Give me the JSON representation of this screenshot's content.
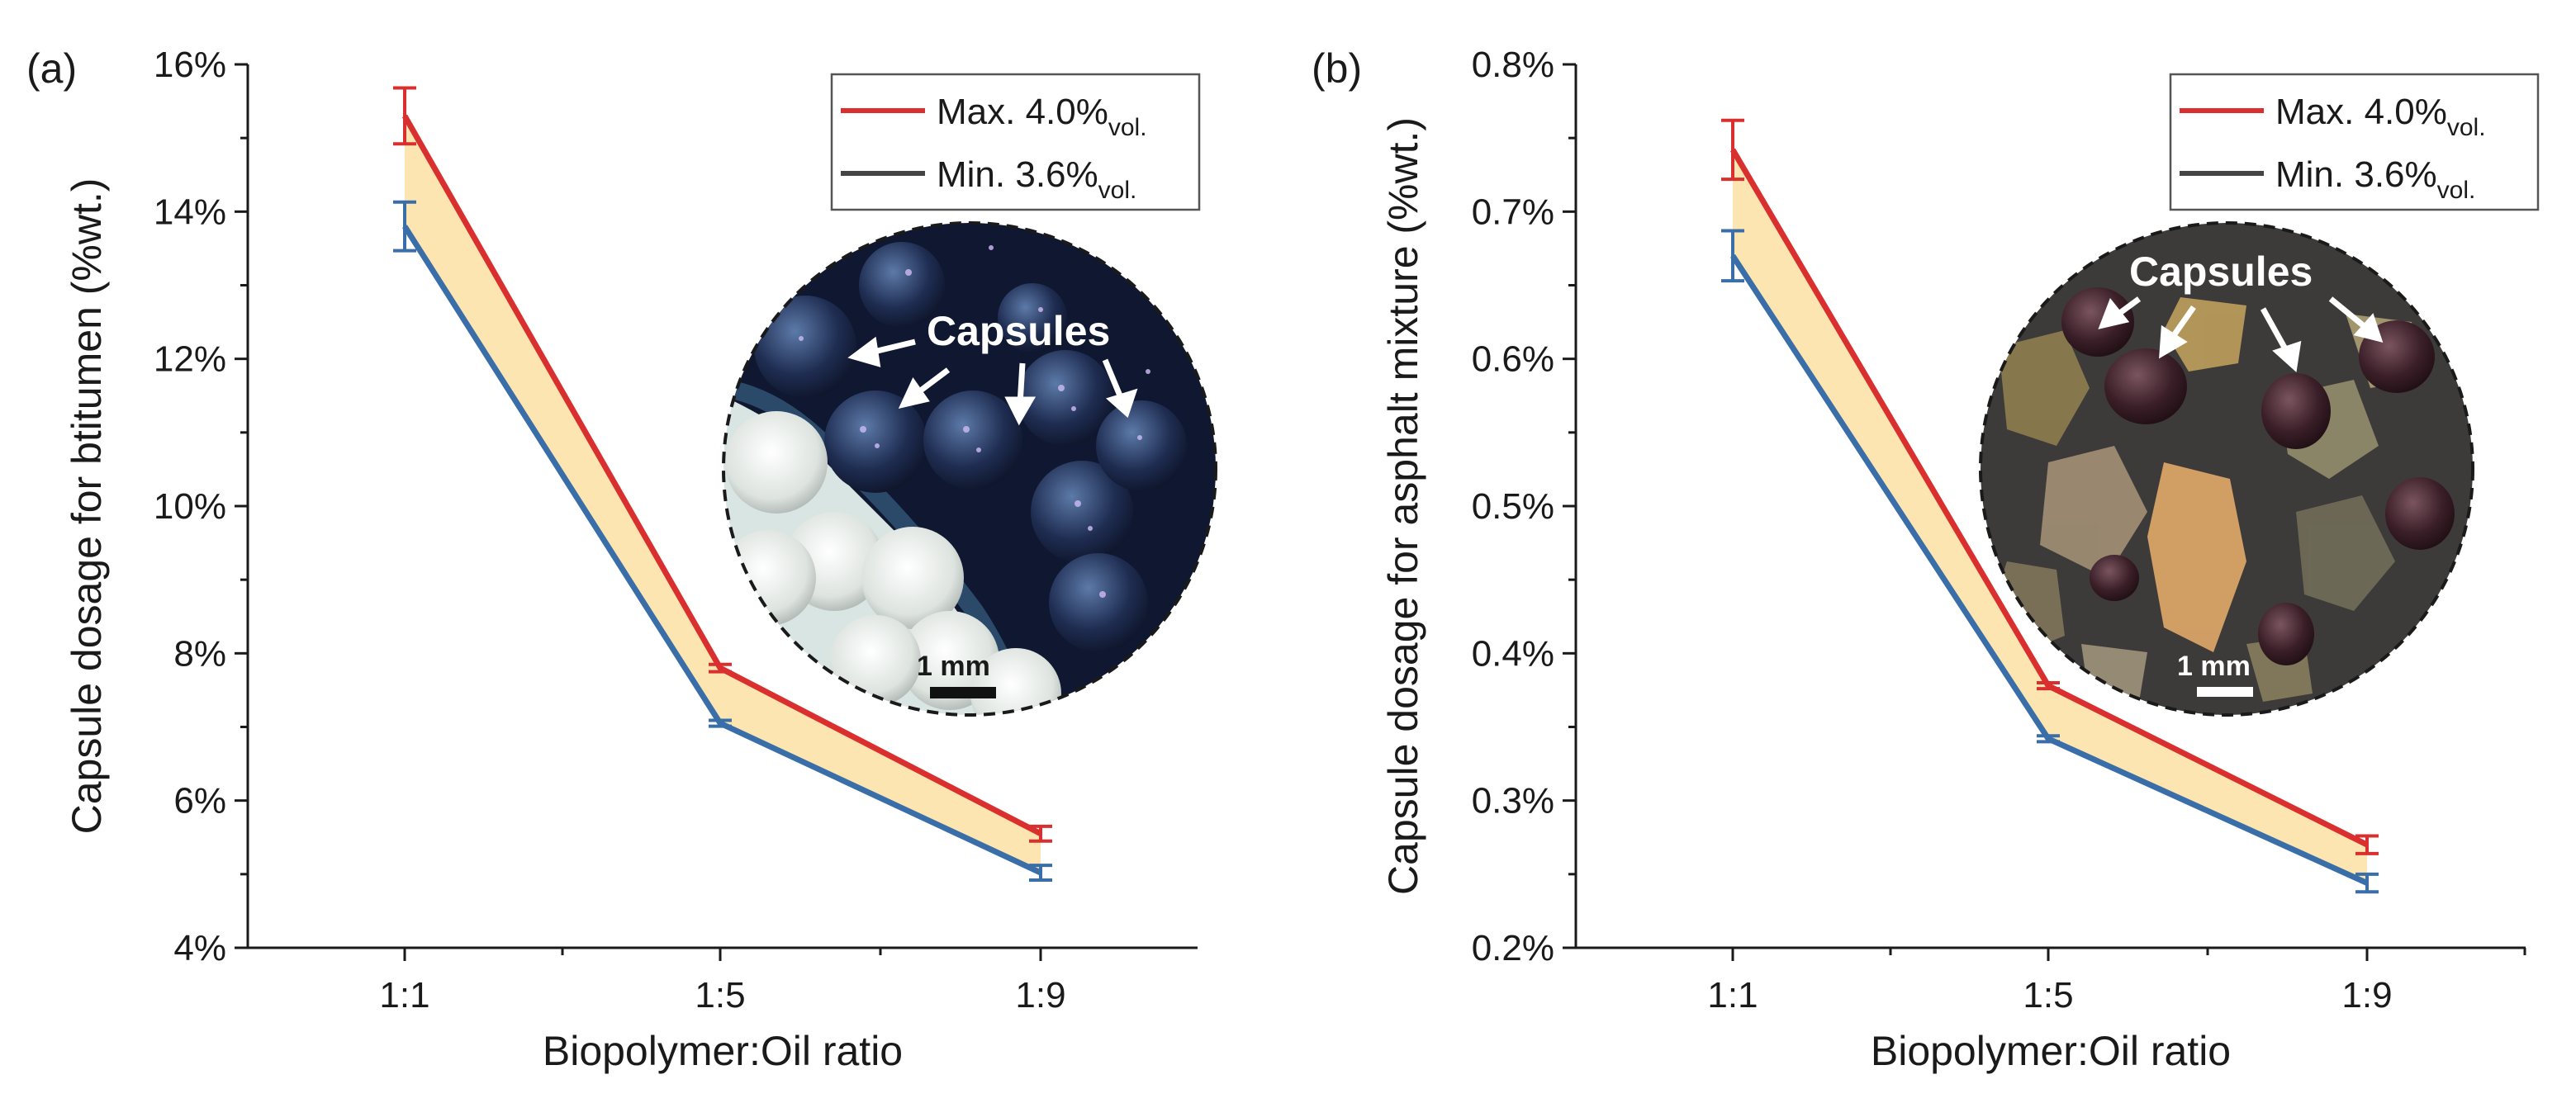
{
  "colors": {
    "max_series": "#d9302f",
    "min_series": "#3a6ea8",
    "band": "#fce5b0",
    "legend_min_swatch": "#444444"
  },
  "chart_data": [
    {
      "panel": "(a)",
      "type": "line",
      "categories": [
        "1:1",
        "1:5",
        "1:9"
      ],
      "xlabel": "Biopolymer:Oil ratio",
      "ylabel": "Capsule dosage for btitumen (%wt.)",
      "ylim": [
        4,
        16
      ],
      "yticks": [
        "4%",
        "6%",
        "8%",
        "10%",
        "12%",
        "14%",
        "16%"
      ],
      "ytick_values": [
        4,
        6,
        8,
        10,
        12,
        14,
        16
      ],
      "fill_between_series": true,
      "legend_position": "top-right",
      "series": [
        {
          "name": "Max. 4.0%",
          "name_sub": "vol.",
          "color": "#d9302f",
          "values": [
            15.3,
            7.8,
            5.55
          ],
          "errors": [
            0.38,
            0.05,
            0.1
          ]
        },
        {
          "name": "Min. 3.6%",
          "name_sub": "vol.",
          "color": "#3a6ea8",
          "values": [
            13.8,
            7.05,
            5.02
          ],
          "errors": [
            0.33,
            0.04,
            0.1
          ]
        }
      ],
      "inset": {
        "annotation": "Capsules",
        "scale_bar": "1 mm",
        "style": "blue-capsules"
      }
    },
    {
      "panel": "(b)",
      "type": "line",
      "categories": [
        "1:1",
        "1:5",
        "1:9"
      ],
      "xlabel": "Biopolymer:Oil ratio",
      "ylabel": "Capsule dosage for asphalt mixture (%wt.)",
      "ylim": [
        0.2,
        0.8
      ],
      "yticks": [
        "0.2%",
        "0.3%",
        "0.4%",
        "0.5%",
        "0.6%",
        "0.7%",
        "0.8%"
      ],
      "ytick_values": [
        0.2,
        0.3,
        0.4,
        0.5,
        0.6,
        0.7,
        0.8
      ],
      "fill_between_series": true,
      "legend_position": "top-right",
      "series": [
        {
          "name": "Max. 4.0%",
          "name_sub": "vol.",
          "color": "#d9302f",
          "values": [
            0.742,
            0.378,
            0.27
          ],
          "errors": [
            0.02,
            0.002,
            0.006
          ]
        },
        {
          "name": "Min. 3.6%",
          "name_sub": "vol.",
          "color": "#3a6ea8",
          "values": [
            0.67,
            0.342,
            0.244
          ],
          "errors": [
            0.017,
            0.002,
            0.006
          ]
        }
      ],
      "inset": {
        "annotation": "Capsules",
        "scale_bar": "1 mm",
        "style": "asphalt-mixture"
      }
    }
  ]
}
